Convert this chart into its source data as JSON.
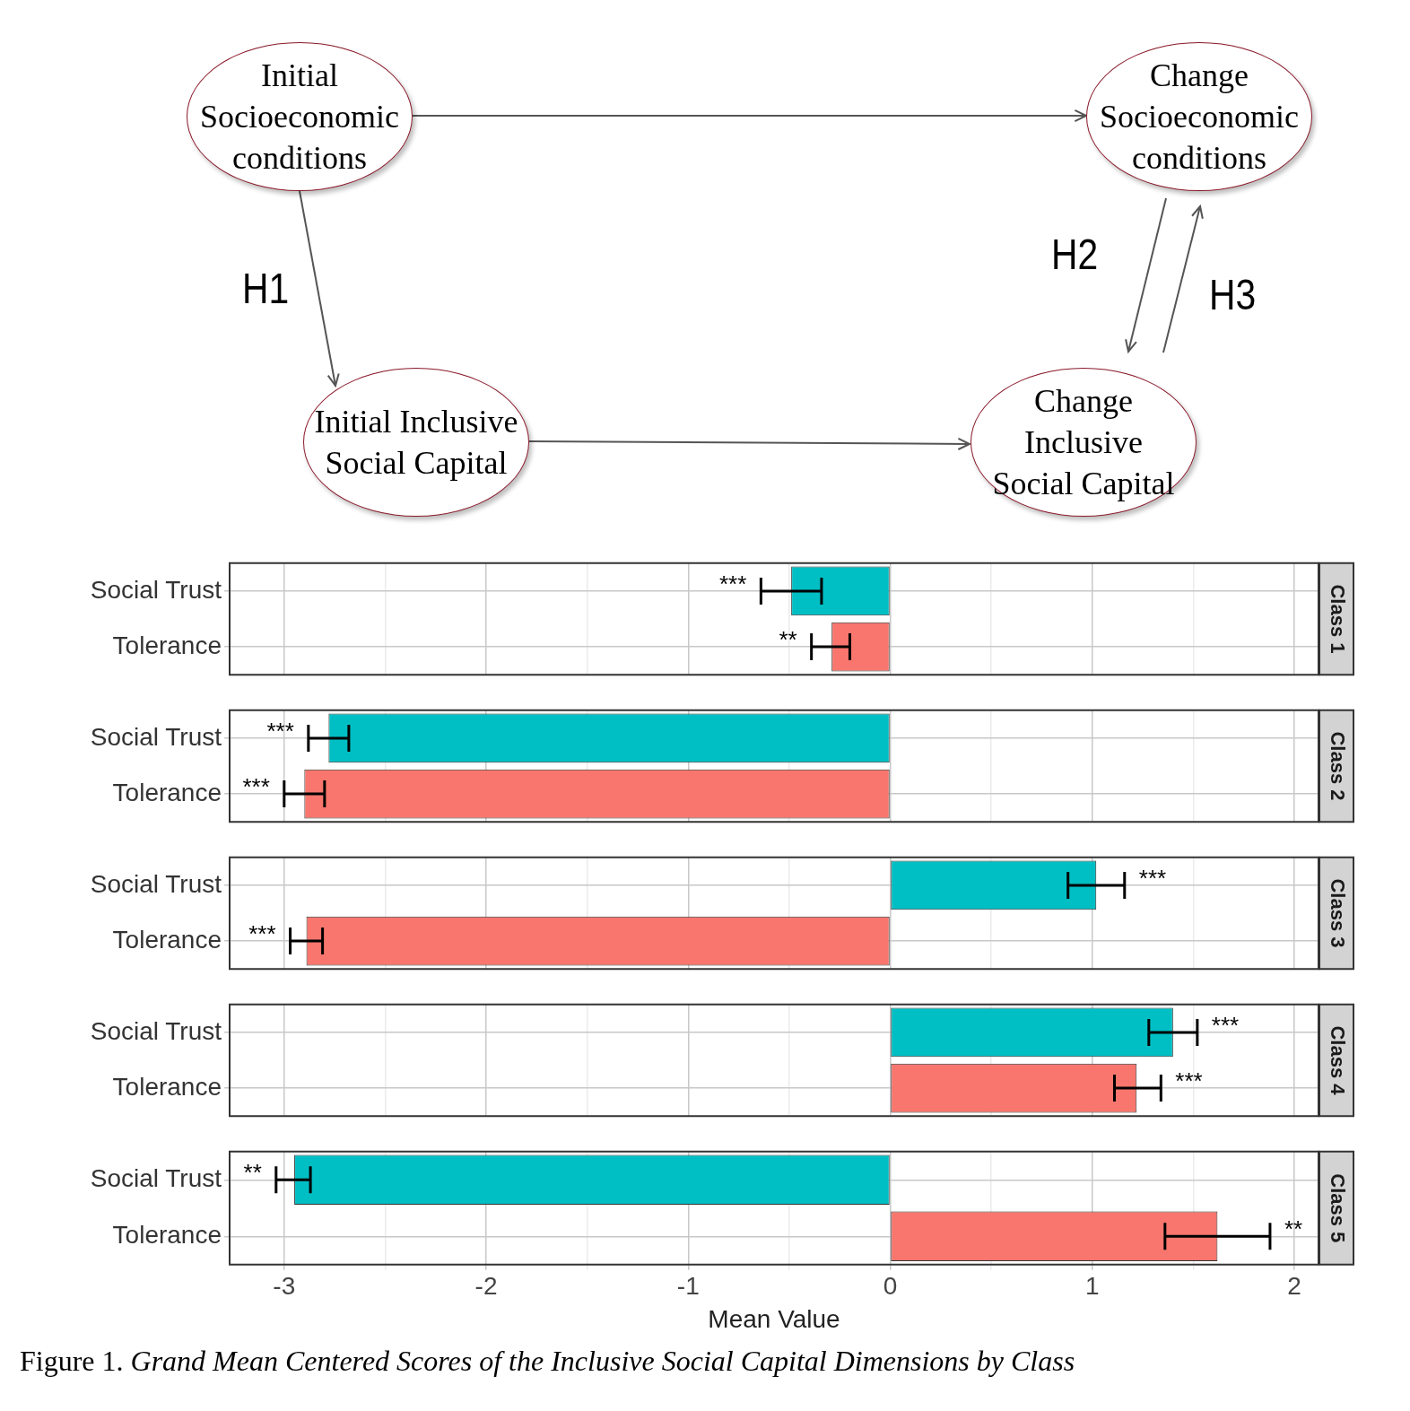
{
  "chart_data": [
    {
      "type": "other",
      "annotations": [
        "Initial Socioeconomic conditions",
        "Change Socioeconomic conditions",
        "Initial Inclusive Social Capital",
        "Change Inclusive Social Capital",
        "H1",
        "H2",
        "H3"
      ]
    },
    {
      "type": "bar",
      "orientation": "horizontal",
      "title": "Class 1",
      "categories": [
        "Social Trust",
        "Tolerance"
      ],
      "values": [
        -0.49,
        -0.29
      ],
      "colors": [
        "#00bfc4",
        "#f8766d"
      ],
      "errors": [
        [
          -0.64,
          -0.34
        ],
        [
          -0.39,
          -0.2
        ]
      ],
      "value_labels": [
        "***",
        "**"
      ],
      "xlim": [
        -3.27,
        2.12
      ],
      "xticks": [
        -3,
        {
          "value": -2.5,
          "label": null
        },
        -2,
        {
          "value": -1.5,
          "label": null
        },
        -1,
        {
          "value": -0.5,
          "label": null
        },
        0,
        {
          "value": 0.5,
          "label": null
        },
        1,
        {
          "value": 1.5,
          "label": null
        },
        2
      ],
      "grid": true,
      "tick_labels": "y"
    },
    {
      "type": "bar",
      "orientation": "horizontal",
      "title": "Class 2",
      "categories": [
        "Social Trust",
        "Tolerance"
      ],
      "values": [
        -2.78,
        -2.9
      ],
      "colors": [
        "#00bfc4",
        "#f8766d"
      ],
      "errors": [
        [
          -2.88,
          -2.68
        ],
        [
          -3.0,
          -2.8
        ]
      ],
      "value_labels": [
        "***",
        "***"
      ],
      "xlim": [
        -3.27,
        2.12
      ],
      "xticks": [
        -3,
        {
          "value": -2.5,
          "label": null
        },
        -2,
        {
          "value": -1.5,
          "label": null
        },
        -1,
        {
          "value": -0.5,
          "label": null
        },
        0,
        {
          "value": 0.5,
          "label": null
        },
        1,
        {
          "value": 1.5,
          "label": null
        },
        2
      ],
      "grid": true,
      "tick_labels": "y"
    },
    {
      "type": "bar",
      "orientation": "horizontal",
      "title": "Class 3",
      "categories": [
        "Social Trust",
        "Tolerance"
      ],
      "values": [
        1.02,
        -2.89
      ],
      "colors": [
        "#00bfc4",
        "#f8766d"
      ],
      "errors": [
        [
          0.88,
          1.16
        ],
        [
          -2.97,
          -2.81
        ]
      ],
      "value_labels": [
        "***",
        "***"
      ],
      "xlim": [
        -3.27,
        2.12
      ],
      "xticks": [
        -3,
        {
          "value": -2.5,
          "label": null
        },
        -2,
        {
          "value": -1.5,
          "label": null
        },
        -1,
        {
          "value": -0.5,
          "label": null
        },
        0,
        {
          "value": 0.5,
          "label": null
        },
        1,
        {
          "value": 1.5,
          "label": null
        },
        2
      ],
      "grid": true,
      "tick_labels": "y"
    },
    {
      "type": "bar",
      "orientation": "horizontal",
      "title": "Class 4",
      "categories": [
        "Social Trust",
        "Tolerance"
      ],
      "values": [
        1.4,
        1.22
      ],
      "colors": [
        "#00bfc4",
        "#f8766d"
      ],
      "errors": [
        [
          1.28,
          1.52
        ],
        [
          1.11,
          1.34
        ]
      ],
      "value_labels": [
        "***",
        "***"
      ],
      "xlim": [
        -3.27,
        2.12
      ],
      "xticks": [
        -3,
        {
          "value": -2.5,
          "label": null
        },
        -2,
        {
          "value": -1.5,
          "label": null
        },
        -1,
        {
          "value": -0.5,
          "label": null
        },
        0,
        {
          "value": 0.5,
          "label": null
        },
        1,
        {
          "value": 1.5,
          "label": null
        },
        2
      ],
      "grid": true,
      "tick_labels": "y"
    },
    {
      "type": "bar",
      "orientation": "horizontal",
      "title": "Class 5",
      "xlabel": "Mean Value",
      "categories": [
        "Social Trust",
        "Tolerance"
      ],
      "values": [
        -2.95,
        1.62
      ],
      "colors": [
        "#00bfc4",
        "#f8766d"
      ],
      "errors": [
        [
          -3.04,
          -2.87
        ],
        [
          1.36,
          1.88
        ]
      ],
      "value_labels": [
        "**",
        "**"
      ],
      "xlim": [
        -3.27,
        2.12
      ],
      "xticks": [
        -3,
        {
          "value": -2.5,
          "label": null
        },
        -2,
        {
          "value": -1.5,
          "label": null
        },
        -1,
        {
          "value": -0.5,
          "label": null
        },
        0,
        {
          "value": 0.5,
          "label": null
        },
        1,
        {
          "value": 1.5,
          "label": null
        },
        2
      ],
      "grid": true,
      "annotations": [
        "Figure 1.",
        "Grand Mean Centered Scores of the Inclusive Social Capital Dimensions by Class"
      ]
    }
  ]
}
